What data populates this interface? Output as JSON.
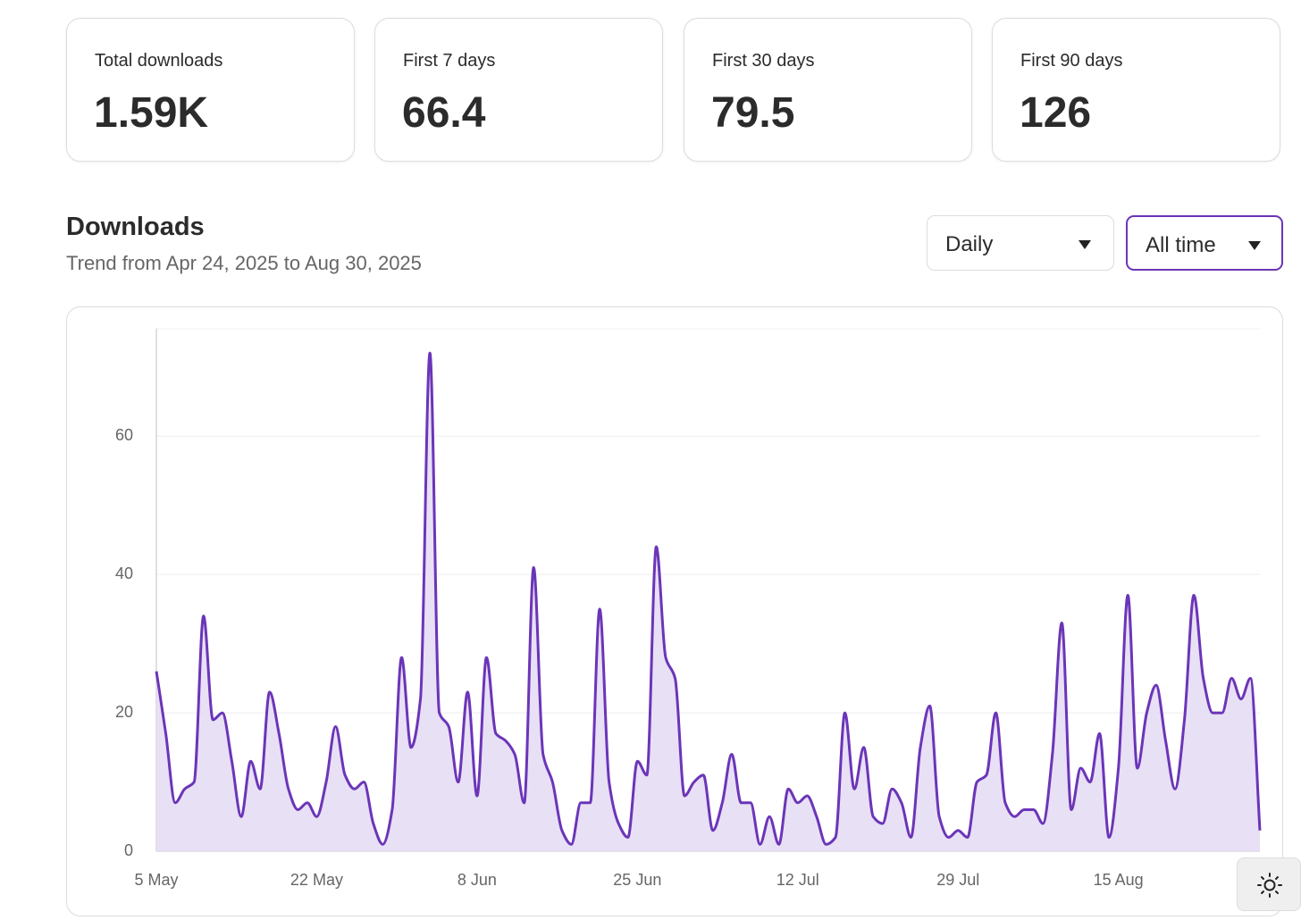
{
  "stats": [
    {
      "label": "Total downloads",
      "value": "1.59K"
    },
    {
      "label": "First 7 days",
      "value": "66.4"
    },
    {
      "label": "First 30 days",
      "value": "79.5"
    },
    {
      "label": "First 90 days",
      "value": "126"
    }
  ],
  "section": {
    "title": "Downloads",
    "subtitle": "Trend from Apr 24, 2025 to Aug 30, 2025",
    "interval_select": "Daily",
    "range_select": "All time"
  },
  "chart_data": {
    "type": "line",
    "fill": true,
    "color": "#6b35b8",
    "fill_color": "#e4dbf3",
    "categories": [
      "5 May",
      null,
      null,
      null,
      null,
      null,
      null,
      null,
      null,
      null,
      null,
      null,
      null,
      null,
      null,
      null,
      null,
      "22 May",
      null,
      null,
      null,
      null,
      null,
      null,
      null,
      null,
      null,
      null,
      null,
      null,
      null,
      null,
      null,
      null,
      "8 Jun",
      null,
      null,
      null,
      null,
      null,
      null,
      null,
      null,
      null,
      null,
      null,
      null,
      null,
      null,
      null,
      null,
      "25 Jun",
      null,
      null,
      null,
      null,
      null,
      null,
      null,
      null,
      null,
      null,
      null,
      null,
      null,
      null,
      null,
      null,
      "12 Jul",
      null,
      null,
      null,
      null,
      null,
      null,
      null,
      null,
      null,
      null,
      null,
      null,
      null,
      null,
      null,
      null,
      "29 Jul",
      null,
      null,
      null,
      null,
      null,
      null,
      null,
      null,
      null,
      null,
      null,
      null,
      null,
      null,
      null,
      null,
      "15 Aug",
      null,
      null,
      null,
      null,
      null,
      null,
      null,
      null,
      null,
      null,
      null,
      null,
      null,
      null,
      null
    ],
    "values": [
      26,
      17,
      7,
      9,
      10,
      34,
      19,
      20,
      13,
      5,
      13,
      9,
      23,
      17,
      9,
      6,
      7,
      5,
      10,
      18,
      11,
      9,
      10,
      4,
      1,
      6,
      28,
      15,
      22,
      72,
      20,
      18,
      10,
      23,
      8,
      28,
      17,
      16,
      14,
      7,
      41,
      14,
      10,
      3,
      1,
      7,
      7,
      35,
      10,
      4,
      2,
      13,
      11,
      44,
      28,
      25,
      8,
      10,
      11,
      3,
      7,
      14,
      7,
      7,
      1,
      5,
      1,
      9,
      7,
      8,
      5,
      1,
      2,
      20,
      9,
      15,
      5,
      4,
      9,
      7,
      2,
      15,
      21,
      5,
      2,
      3,
      2,
      10,
      11,
      20,
      7,
      5,
      6,
      6,
      4,
      14,
      33,
      6,
      12,
      10,
      17,
      2,
      12,
      37,
      12,
      20,
      24,
      16,
      9,
      19,
      37,
      25,
      20,
      20,
      25,
      22,
      25,
      3
    ],
    "ylim": [
      0,
      75
    ],
    "yticks": [
      0,
      20,
      40,
      60
    ],
    "grid": true
  }
}
